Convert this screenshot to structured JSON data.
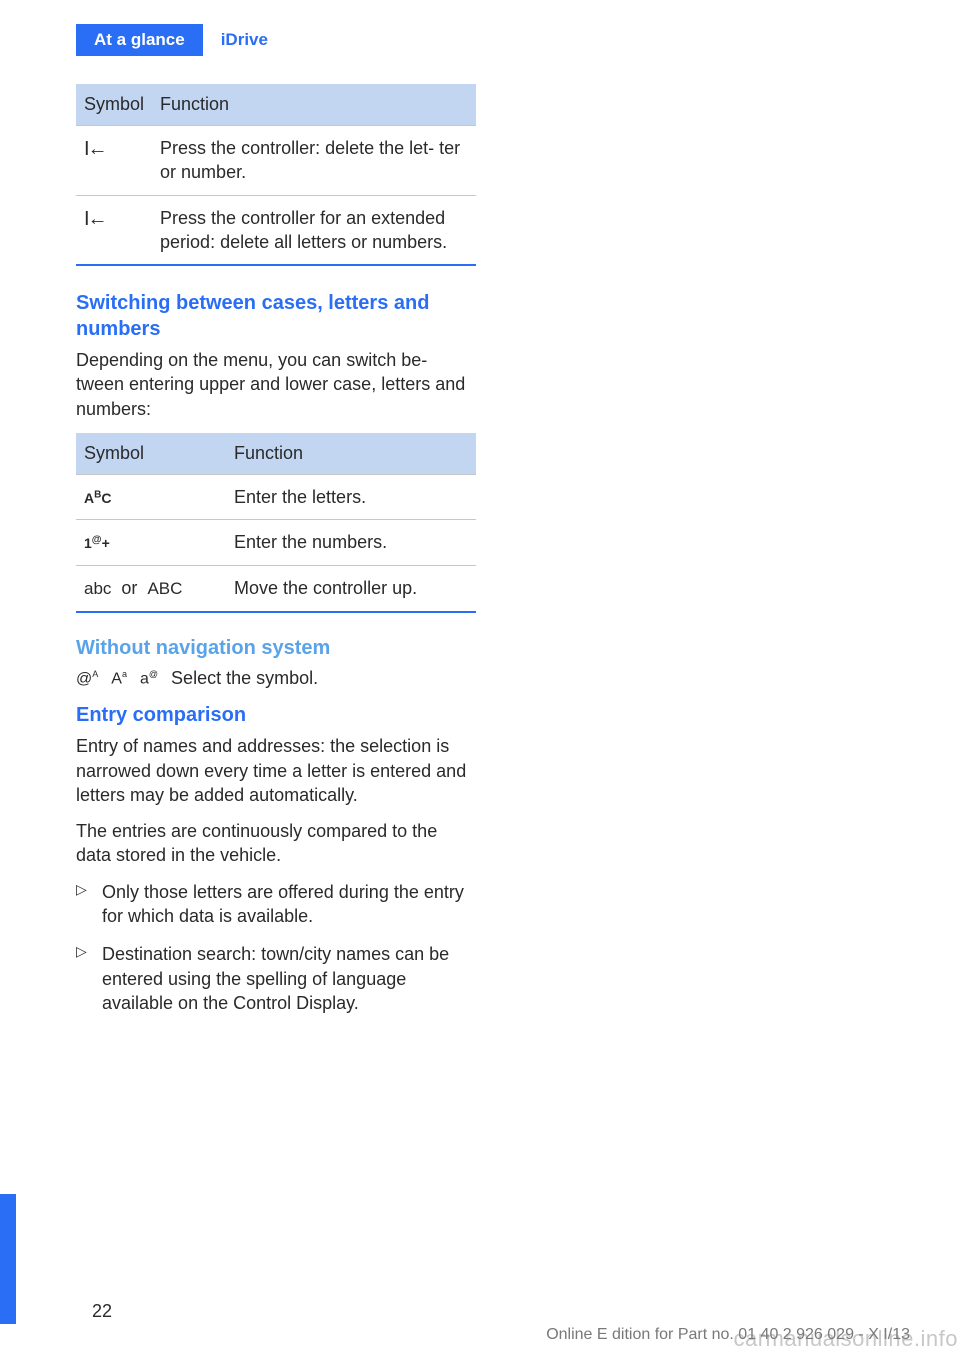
{
  "header": {
    "tab_primary": "At a glance",
    "tab_secondary": "iDrive"
  },
  "table1": {
    "type": "table",
    "header_bg": "#c2d6f2",
    "border_color": "#2a6ef5",
    "columns": [
      "Symbol",
      "Function"
    ],
    "rows": [
      {
        "symbol": "I←",
        "function": "Press the controller: delete the let‐ ter or number."
      },
      {
        "symbol": "I←",
        "function": "Press the controller for an extended period: delete all letters or numbers."
      }
    ]
  },
  "heading_switching": "Switching between cases, letters and numbers",
  "para_switching": "Depending on the menu, you can switch be‐ tween entering upper and lower case, letters and numbers:",
  "table2": {
    "type": "table",
    "header_bg": "#c2d6f2",
    "border_color": "#2a6ef5",
    "columns": [
      "Symbol",
      "Function"
    ],
    "rows": [
      {
        "symbol": "AᴮC",
        "function": "Enter the letters."
      },
      {
        "symbol": "1@₊",
        "function": "Enter the numbers."
      },
      {
        "symbol": "abc  or  ABC",
        "function": "Move the controller up."
      }
    ]
  },
  "heading_without_nav": "Without navigation system",
  "symbols_line": "@ᴬ  Aᵃ  a@",
  "symbols_text": "Select the symbol.",
  "heading_entry": "Entry comparison",
  "para_entry1": "Entry of names and addresses: the selection is narrowed down every time a letter is entered and letters may be added automatically.",
  "para_entry2": "The entries are continuously compared to the data stored in the vehicle.",
  "bullets": [
    "Only those letters are offered during the entry for which data is available.",
    "Destination search: town/city names can be entered using the spelling of language available on the Control Display."
  ],
  "page_number": "22",
  "footer_text": "Online E dition for Part no. 01 40 2 926 029 - X I/13",
  "watermark": "carmanualsonline.info",
  "colors": {
    "primary_blue": "#2a6ef5",
    "light_blue": "#5aa3e8",
    "header_bg": "#c2d6f2",
    "text": "#2a2a2a"
  }
}
